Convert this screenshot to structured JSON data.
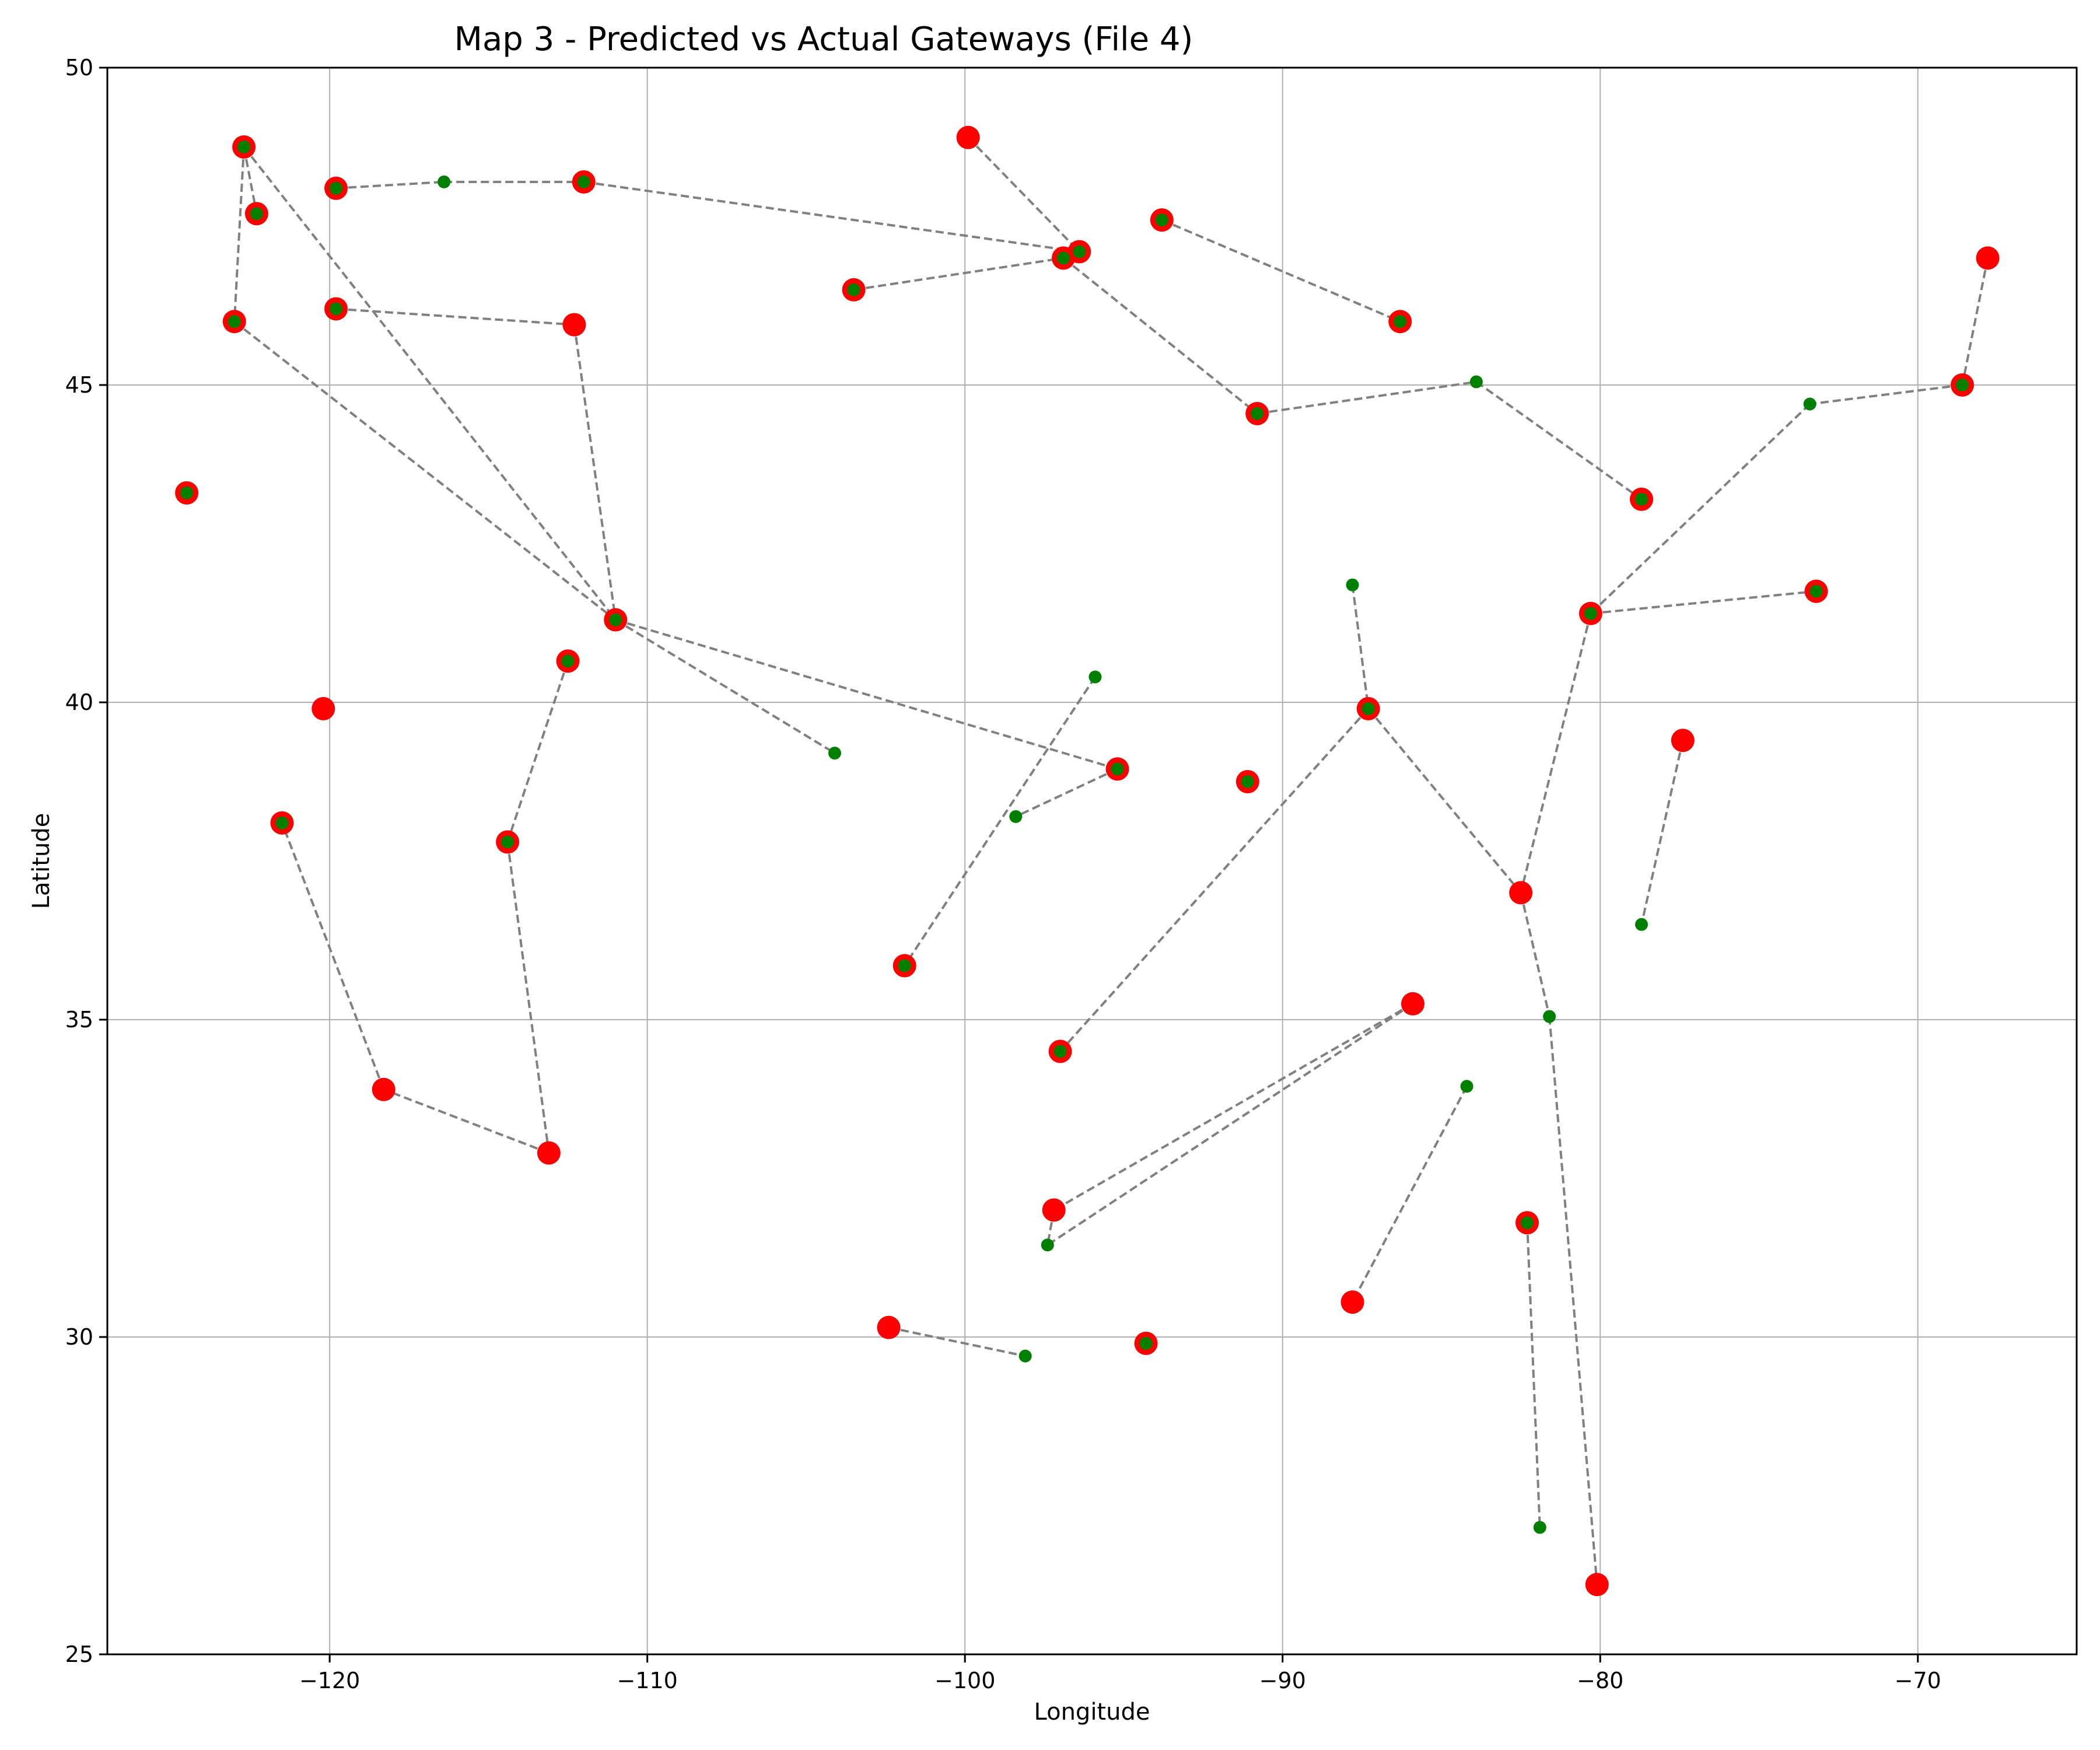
{
  "chart_data": {
    "type": "scatter",
    "title": "Map 3 - Predicted vs Actual Gateways (File 4)",
    "xlabel": "Longitude",
    "ylabel": "Latitude",
    "xlim": [
      -127,
      -65
    ],
    "ylim": [
      25,
      50
    ],
    "xticks": [
      -120,
      -110,
      -100,
      -90,
      -80,
      -70
    ],
    "yticks": [
      25,
      30,
      35,
      40,
      45,
      50
    ],
    "grid": true,
    "legend": "none",
    "colors": {
      "predicted": "#ff0000",
      "actual": "#008000",
      "link": "#808080",
      "grid": "#b0b0b0"
    },
    "series": [
      {
        "role": "predicted",
        "points": [
          [
            -122.7,
            48.75
          ],
          [
            -122.3,
            47.7
          ],
          [
            -119.8,
            48.1
          ],
          [
            -112.0,
            48.2
          ],
          [
            -99.9,
            48.9
          ],
          [
            -96.4,
            47.1
          ],
          [
            -96.9,
            47.0
          ],
          [
            -103.5,
            46.5
          ],
          [
            -93.8,
            47.6
          ],
          [
            -86.3,
            46.0
          ],
          [
            -123.0,
            46.0
          ],
          [
            -119.8,
            46.2
          ],
          [
            -112.3,
            45.95
          ],
          [
            -90.8,
            44.55
          ],
          [
            -124.5,
            43.3
          ],
          [
            -78.7,
            43.2
          ],
          [
            -68.6,
            45.0
          ],
          [
            -67.8,
            47.0
          ],
          [
            -111.0,
            41.3
          ],
          [
            -80.3,
            41.4
          ],
          [
            -73.2,
            41.75
          ],
          [
            -87.3,
            39.9
          ],
          [
            -120.2,
            39.9
          ],
          [
            -112.5,
            40.65
          ],
          [
            -77.4,
            39.4
          ],
          [
            -95.2,
            38.95
          ],
          [
            -91.1,
            38.75
          ],
          [
            -121.5,
            38.1
          ],
          [
            -114.4,
            37.8
          ],
          [
            -82.5,
            37.0
          ],
          [
            -101.9,
            35.85
          ],
          [
            -85.9,
            35.25
          ],
          [
            -97.0,
            34.5
          ],
          [
            -118.3,
            33.9
          ],
          [
            -113.1,
            32.9
          ],
          [
            -97.2,
            32.0
          ],
          [
            -82.3,
            31.8
          ],
          [
            -87.8,
            30.55
          ],
          [
            -102.4,
            30.15
          ],
          [
            -94.3,
            29.9
          ],
          [
            -80.1,
            26.1
          ]
        ]
      },
      {
        "role": "actual",
        "points": [
          [
            -122.7,
            48.75
          ],
          [
            -122.3,
            47.7
          ],
          [
            -119.8,
            48.1
          ],
          [
            -116.4,
            48.2
          ],
          [
            -112.0,
            48.2
          ],
          [
            -96.4,
            47.1
          ],
          [
            -96.9,
            47.0
          ],
          [
            -103.5,
            46.5
          ],
          [
            -93.8,
            47.6
          ],
          [
            -86.3,
            46.0
          ],
          [
            -123.0,
            46.0
          ],
          [
            -119.8,
            46.2
          ],
          [
            -90.8,
            44.55
          ],
          [
            -124.5,
            43.3
          ],
          [
            -83.9,
            45.05
          ],
          [
            -78.7,
            43.2
          ],
          [
            -73.4,
            44.7
          ],
          [
            -68.6,
            45.0
          ],
          [
            -111.0,
            41.3
          ],
          [
            -80.3,
            41.4
          ],
          [
            -73.2,
            41.75
          ],
          [
            -87.8,
            41.85
          ],
          [
            -87.3,
            39.9
          ],
          [
            -112.5,
            40.65
          ],
          [
            -95.9,
            40.4
          ],
          [
            -104.1,
            39.2
          ],
          [
            -95.2,
            38.95
          ],
          [
            -91.1,
            38.75
          ],
          [
            -98.4,
            38.2
          ],
          [
            -121.5,
            38.1
          ],
          [
            -114.4,
            37.8
          ],
          [
            -78.7,
            36.5
          ],
          [
            -101.9,
            35.85
          ],
          [
            -81.6,
            35.05
          ],
          [
            -97.0,
            34.5
          ],
          [
            -84.2,
            33.95
          ],
          [
            -97.4,
            31.45
          ],
          [
            -82.3,
            31.8
          ],
          [
            -98.1,
            29.7
          ],
          [
            -94.3,
            29.9
          ],
          [
            -81.9,
            27.0
          ]
        ]
      }
    ],
    "links": [
      [
        [
          -122.7,
          48.75
        ],
        [
          -122.3,
          47.7
        ]
      ],
      [
        [
          -122.7,
          48.75
        ],
        [
          -123.0,
          46.0
        ]
      ],
      [
        [
          -122.7,
          48.75
        ],
        [
          -111.0,
          41.3
        ]
      ],
      [
        [
          -123.0,
          46.0
        ],
        [
          -111.0,
          41.3
        ]
      ],
      [
        [
          -119.8,
          48.1
        ],
        [
          -116.4,
          48.2
        ]
      ],
      [
        [
          -116.4,
          48.2
        ],
        [
          -112.0,
          48.2
        ]
      ],
      [
        [
          -112.0,
          48.2
        ],
        [
          -96.4,
          47.1
        ]
      ],
      [
        [
          -99.9,
          48.9
        ],
        [
          -96.4,
          47.1
        ]
      ],
      [
        [
          -103.5,
          46.5
        ],
        [
          -96.9,
          47.0
        ]
      ],
      [
        [
          -96.9,
          47.0
        ],
        [
          -90.8,
          44.55
        ]
      ],
      [
        [
          -93.8,
          47.6
        ],
        [
          -86.3,
          46.0
        ]
      ],
      [
        [
          -119.8,
          46.2
        ],
        [
          -112.3,
          45.95
        ]
      ],
      [
        [
          -112.3,
          45.95
        ],
        [
          -111.0,
          41.3
        ]
      ],
      [
        [
          -111.0,
          41.3
        ],
        [
          -104.1,
          39.2
        ]
      ],
      [
        [
          -111.0,
          41.3
        ],
        [
          -95.2,
          38.95
        ]
      ],
      [
        [
          -90.8,
          44.55
        ],
        [
          -83.9,
          45.05
        ]
      ],
      [
        [
          -83.9,
          45.05
        ],
        [
          -78.7,
          43.2
        ]
      ],
      [
        [
          -67.8,
          47.0
        ],
        [
          -68.6,
          45.0
        ]
      ],
      [
        [
          -68.6,
          45.0
        ],
        [
          -73.4,
          44.7
        ]
      ],
      [
        [
          -73.4,
          44.7
        ],
        [
          -80.3,
          41.4
        ]
      ],
      [
        [
          -80.3,
          41.4
        ],
        [
          -73.2,
          41.75
        ]
      ],
      [
        [
          -80.3,
          41.4
        ],
        [
          -82.5,
          37.0
        ]
      ],
      [
        [
          -87.8,
          41.85
        ],
        [
          -87.3,
          39.9
        ]
      ],
      [
        [
          -87.3,
          39.9
        ],
        [
          -97.0,
          34.5
        ]
      ],
      [
        [
          -87.3,
          39.9
        ],
        [
          -82.5,
          37.0
        ]
      ],
      [
        [
          -82.5,
          37.0
        ],
        [
          -81.6,
          35.05
        ]
      ],
      [
        [
          -81.6,
          35.05
        ],
        [
          -80.1,
          26.1
        ]
      ],
      [
        [
          -112.5,
          40.65
        ],
        [
          -114.4,
          37.8
        ]
      ],
      [
        [
          -114.4,
          37.8
        ],
        [
          -113.1,
          32.9
        ]
      ],
      [
        [
          -113.1,
          32.9
        ],
        [
          -118.3,
          33.9
        ]
      ],
      [
        [
          -118.3,
          33.9
        ],
        [
          -121.5,
          38.1
        ]
      ],
      [
        [
          -77.4,
          39.4
        ],
        [
          -78.7,
          36.5
        ]
      ],
      [
        [
          -95.9,
          40.4
        ],
        [
          -101.9,
          35.85
        ]
      ],
      [
        [
          -95.2,
          38.95
        ],
        [
          -98.4,
          38.2
        ]
      ],
      [
        [
          -85.9,
          35.25
        ],
        [
          -97.2,
          32.0
        ]
      ],
      [
        [
          -85.9,
          35.25
        ],
        [
          -97.4,
          31.45
        ]
      ],
      [
        [
          -97.2,
          32.0
        ],
        [
          -97.4,
          31.45
        ]
      ],
      [
        [
          -84.2,
          33.95
        ],
        [
          -87.8,
          30.55
        ]
      ],
      [
        [
          -82.3,
          31.8
        ],
        [
          -81.9,
          27.0
        ]
      ],
      [
        [
          -102.4,
          30.15
        ],
        [
          -98.1,
          29.7
        ]
      ]
    ]
  }
}
